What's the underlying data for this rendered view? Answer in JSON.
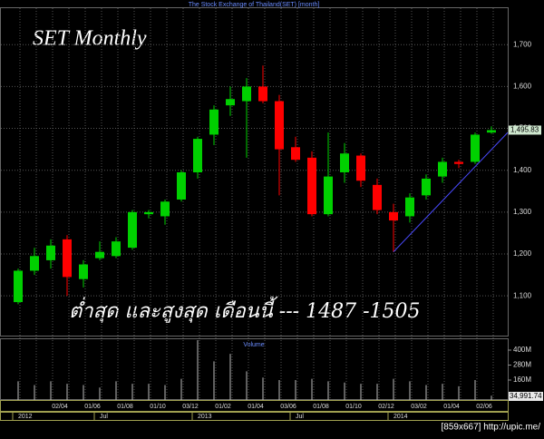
{
  "chart_data": {
    "type": "candlestick",
    "title": "The Stock Exchange of Thailand(SET) [month]",
    "chart_label": "SET Monthly",
    "annotation": "ต่ำสุด และสูงสุด เดือนนี้ --- 1487 -1505",
    "categories": [
      null,
      null,
      "02/04",
      null,
      "01/06",
      null,
      "01/08",
      null,
      "01/10",
      null,
      "03/12",
      null,
      "01/02",
      null,
      "01/04",
      null,
      "03/06",
      null,
      "01/08",
      null,
      "01/10",
      null,
      "02/12",
      null,
      "03/02",
      null,
      "01/04",
      null,
      "02/06",
      null
    ],
    "period_labels": [
      "2012",
      null,
      null,
      null,
      null,
      "Jul",
      null,
      null,
      null,
      null,
      null,
      "2013",
      null,
      null,
      null,
      null,
      null,
      "Jul",
      null,
      null,
      null,
      null,
      null,
      "2014",
      null,
      null,
      null,
      null,
      null,
      null
    ],
    "open": [
      1085,
      1160,
      1185,
      1235,
      1140,
      1190,
      1195,
      1215,
      1295,
      1290,
      1330,
      1395,
      1485,
      1555,
      1565,
      1600,
      1565,
      1455,
      1430,
      1295,
      1395,
      1435,
      1365,
      1300,
      1290,
      1340,
      1385,
      1420,
      1420,
      1490
    ],
    "high": [
      1165,
      1215,
      1235,
      1245,
      1185,
      1230,
      1240,
      1305,
      1305,
      1330,
      1400,
      1480,
      1555,
      1600,
      1620,
      1650,
      1580,
      1480,
      1445,
      1490,
      1465,
      1440,
      1380,
      1320,
      1345,
      1390,
      1430,
      1425,
      1490,
      1505
    ],
    "low": [
      1080,
      1150,
      1165,
      1100,
      1120,
      1185,
      1190,
      1210,
      1285,
      1270,
      1325,
      1380,
      1460,
      1530,
      1430,
      1560,
      1340,
      1420,
      1290,
      1290,
      1370,
      1360,
      1295,
      1205,
      1275,
      1330,
      1370,
      1405,
      1415,
      1487
    ],
    "close": [
      1160,
      1195,
      1220,
      1145,
      1175,
      1205,
      1230,
      1300,
      1300,
      1325,
      1395,
      1475,
      1545,
      1570,
      1600,
      1565,
      1450,
      1425,
      1295,
      1385,
      1440,
      1375,
      1305,
      1280,
      1335,
      1380,
      1420,
      1415,
      1485,
      1495.83
    ],
    "up_color": "#00d000",
    "down_color": "#ff0000",
    "last_close_label": "1,495.83",
    "ylim": [
      1005,
      1785
    ],
    "yticks": [
      {
        "value": 1100,
        "label": "1,100"
      },
      {
        "value": 1200,
        "label": "1,200"
      },
      {
        "value": 1300,
        "label": "1,300"
      },
      {
        "value": 1400,
        "label": "1,400"
      },
      {
        "value": 1500,
        "label": "1,500"
      },
      {
        "value": 1600,
        "label": "1,600"
      },
      {
        "value": 1700,
        "label": "1,700"
      }
    ],
    "grid": true,
    "trendline": {
      "x": [
        23,
        30.5
      ],
      "y": [
        1205,
        1490
      ],
      "color": "#4a4aff"
    },
    "volume": {
      "title": "Volume",
      "color": "#bbbbbb",
      "values": [
        150,
        120,
        150,
        130,
        120,
        100,
        150,
        130,
        130,
        120,
        170,
        480,
        310,
        370,
        230,
        180,
        160,
        160,
        170,
        150,
        140,
        130,
        130,
        170,
        150,
        120,
        130,
        110,
        160,
        35
      ],
      "ylim": [
        0,
        480
      ],
      "yticks": [
        {
          "value": 160,
          "label": "160M"
        },
        {
          "value": 280,
          "label": "280M"
        },
        {
          "value": 400,
          "label": "400M"
        }
      ],
      "last_label": "34,991.74"
    }
  },
  "footer": "[859x667] http://upic.me/"
}
